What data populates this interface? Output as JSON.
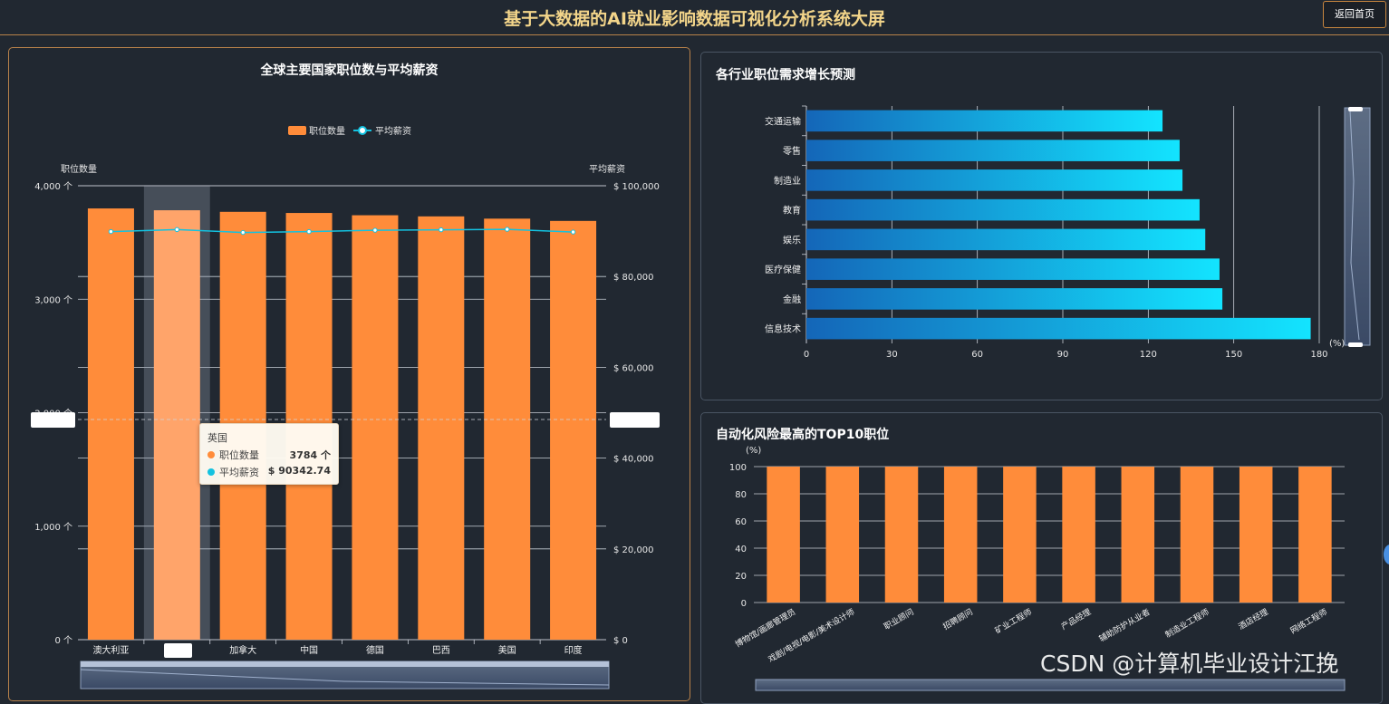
{
  "header": {
    "title": "基于大数据的AI就业影响数据可视化分析系统大屏",
    "back_label": "返回首页"
  },
  "colors": {
    "orange": "#ff8c3a",
    "cyan": "#13c2e0",
    "blue_start": "#1466b8",
    "blue_end": "#13e4ff"
  },
  "chart_data": [
    {
      "type": "bar",
      "title": "全球主要国家职位数与平均薪资",
      "legend": {
        "position": "top-center",
        "items": [
          "职位数量",
          "平均薪资"
        ]
      },
      "categories": [
        "澳大利亚",
        "英国",
        "加拿大",
        "中国",
        "德国",
        "巴西",
        "美国",
        "印度"
      ],
      "series": [
        {
          "name": "职位数量",
          "type": "bar",
          "values": [
            3800,
            3784,
            3770,
            3760,
            3740,
            3730,
            3710,
            3690
          ]
        },
        {
          "name": "平均薪资",
          "type": "line",
          "values": [
            89900,
            90342.74,
            89700,
            89900,
            90200,
            90300,
            90400,
            89800
          ]
        }
      ],
      "ylabel": "职位数量",
      "ylabel_right": "平均薪资",
      "ylim": [
        0,
        4000
      ],
      "ylim_right": [
        0,
        100000
      ],
      "y_ticks": [
        "0 个",
        "1,000 个",
        "2,000 个",
        "3,000 个",
        "4,000 个"
      ],
      "y_ticks_right": [
        "$ 0",
        "$ 20,000",
        "$ 40,000",
        "$ 60,000",
        "$ 80,000",
        "$ 100,000"
      ],
      "highlighted_category": "英国",
      "tooltip": {
        "title": "英国",
        "rows": [
          {
            "name": "职位数量",
            "value": "3784 个"
          },
          {
            "name": "平均薪资",
            "value": "$ 90342.74"
          }
        ]
      },
      "grid": true
    },
    {
      "type": "bar",
      "orientation": "horizontal",
      "title": "各行业职位需求增长预测",
      "categories": [
        "交通运输",
        "零售",
        "制造业",
        "教育",
        "娱乐",
        "医疗保健",
        "金融",
        "信息技术"
      ],
      "values": [
        125,
        131,
        132,
        138,
        140,
        145,
        146,
        177
      ],
      "xlabel": "(%)",
      "xlim": [
        0,
        180
      ],
      "x_ticks": [
        "0",
        "30",
        "60",
        "90",
        "120",
        "150",
        "180"
      ],
      "grid": true
    },
    {
      "type": "bar",
      "title": "自动化风险最高的TOP10职位",
      "categories": [
        "博物馆/画廊管理员",
        "戏剧/电视/电影/美术设计师",
        "职业顾问",
        "招聘顾问",
        "矿业工程师",
        "产品经理",
        "辅助防护从业者",
        "制造业工程师",
        "酒店经理",
        "网络工程师"
      ],
      "values": [
        100,
        100,
        100,
        100,
        100,
        100,
        100,
        100,
        100,
        100
      ],
      "ylabel": "(%)",
      "ylim": [
        0,
        100
      ],
      "y_ticks": [
        "0",
        "20",
        "40",
        "60",
        "80",
        "100"
      ],
      "grid": true
    }
  ],
  "watermark": "CSDN @计算机毕业设计江挽"
}
